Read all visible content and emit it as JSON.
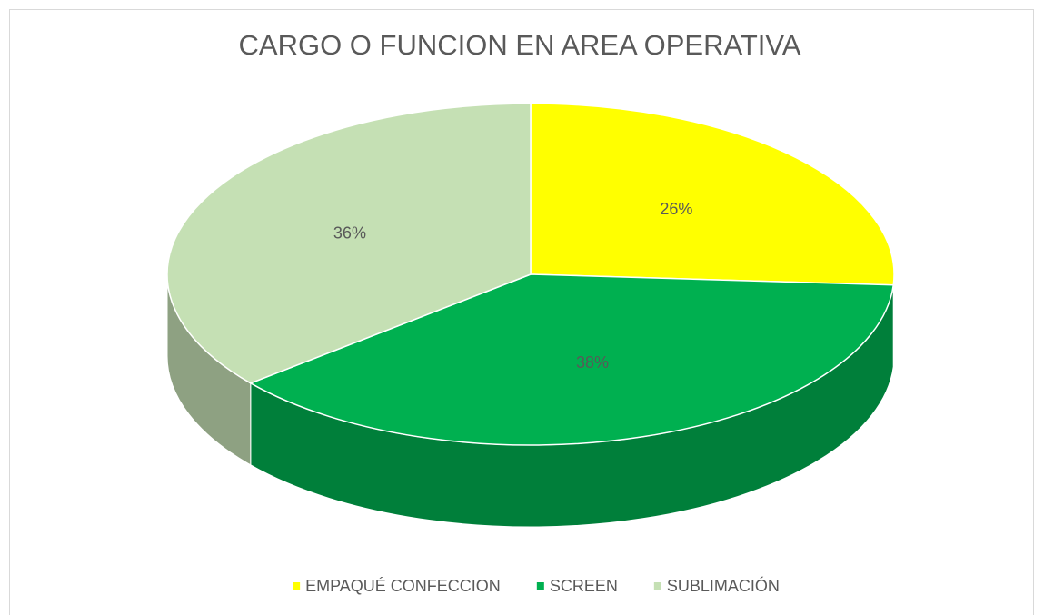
{
  "chart_data": {
    "type": "pie",
    "title": "CARGO O FUNCION EN AREA OPERATIVA",
    "categories": [
      "EMPAQUÉ CONFECCION",
      "SCREEN",
      "SUBLIMACIÓN"
    ],
    "values": [
      26,
      38,
      36
    ],
    "value_labels": [
      "26%",
      "38%",
      "36%"
    ],
    "colors": [
      "#ffff00",
      "#00b050",
      "#c5e0b4"
    ],
    "legend": "bottom"
  }
}
